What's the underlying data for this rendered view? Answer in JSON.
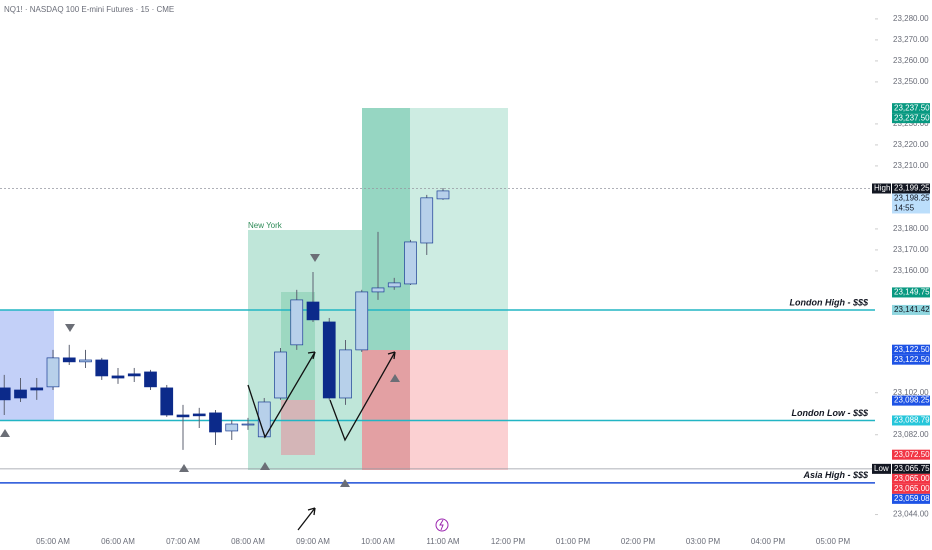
{
  "chart_data": {
    "type": "candlestick",
    "title": "NQ1! · NASDAQ 100 E-mini Futures · 15 · CME",
    "up_color": "#b7d0ea",
    "up_border": "#1c3f94",
    "down_color": "#0c2a8a",
    "open": [
      23104.3,
      23103.3,
      23104.3,
      23104.8,
      23118.6,
      23116.7,
      23117.6,
      23110.0,
      23111.0,
      23111.9,
      23104.3,
      23091.4,
      23091.9,
      23092.4,
      23083.8,
      23086.7,
      23081.0,
      23099.5,
      23124.8,
      23145.2,
      23135.7,
      23099.5,
      23122.4,
      23150.0,
      23152.4,
      23153.8,
      23173.3,
      23194.3
    ],
    "high": [
      23110.5,
      23109.0,
      23109.0,
      23122.4,
      23124.8,
      23122.4,
      23118.6,
      23113.8,
      23113.8,
      23112.9,
      23105.7,
      23096.2,
      23094.8,
      23093.8,
      23089.0,
      23090.0,
      23099.5,
      23123.3,
      23151.0,
      23159.5,
      23137.6,
      23127.1,
      23151.0,
      23178.6,
      23156.7,
      23174.8,
      23196.2,
      23199.5
    ],
    "low": [
      23091.4,
      23097.6,
      23098.6,
      23103.3,
      23115.2,
      23113.8,
      23108.1,
      23106.2,
      23107.1,
      23103.3,
      23090.5,
      23074.8,
      23085.2,
      23077.1,
      23079.5,
      23084.3,
      23080.5,
      23098.6,
      23122.4,
      23135.7,
      23098.6,
      23096.2,
      23121.4,
      23146.2,
      23151.0,
      23153.3,
      23167.6,
      23193.8
    ],
    "close": [
      23098.6,
      23099.5,
      23103.3,
      23118.6,
      23116.7,
      23117.6,
      23110.0,
      23109.0,
      23110.0,
      23104.8,
      23091.4,
      23090.5,
      23091.0,
      23083.3,
      23087.1,
      23087.1,
      23097.6,
      23121.4,
      23146.2,
      23136.7,
      23099.5,
      23122.4,
      23150.0,
      23151.9,
      23154.3,
      23173.8,
      23194.8,
      23198.1
    ],
    "time_labels": [
      "05:00 AM",
      "06:00 AM",
      "07:00 AM",
      "08:00 AM",
      "09:00 AM",
      "10:00 AM",
      "11:00 AM",
      "12:00 PM",
      "01:00 PM",
      "02:00 PM",
      "03:00 PM",
      "04:00 PM",
      "05:00 PM"
    ],
    "ylim": [
      23041.4,
      23289.0
    ],
    "yticks": [
      {
        "value": 23280,
        "label": "23,280.00"
      },
      {
        "value": 23270,
        "label": "23,270.00"
      },
      {
        "value": 23260,
        "label": "23,260.00"
      },
      {
        "value": 23250,
        "label": "23,250.00"
      },
      {
        "value": 23230,
        "label": "23,230.00"
      },
      {
        "value": 23220,
        "label": "23,220.00"
      },
      {
        "value": 23210,
        "label": "23,210.00"
      },
      {
        "value": 23180,
        "label": "23,180.00"
      },
      {
        "value": 23170,
        "label": "23,170.00"
      },
      {
        "value": 23160,
        "label": "23,160.00"
      },
      {
        "value": 23102,
        "label": "23,102.00"
      },
      {
        "value": 23082,
        "label": "23,082.00"
      },
      {
        "value": 23044,
        "label": "23,044.00"
      }
    ],
    "levels": [
      {
        "name": "London High - $$$",
        "value": 23141.42,
        "color": "#22b5c4"
      },
      {
        "name": "London Low - $$$",
        "value": 23088.79,
        "color": "#22b5c4"
      },
      {
        "name": "Asia High - $$$",
        "value": 23059.08,
        "color": "#1e4fd8"
      }
    ],
    "price_labels": [
      {
        "value": 23237.5,
        "label": "23,237.50",
        "color": "#089981"
      },
      {
        "value": 23237.5,
        "label": "23,237.50",
        "color": "#089981"
      },
      {
        "value": 23199.25,
        "label": "23,199.25",
        "color": "#131722",
        "tag": "High"
      },
      {
        "value": 23198.25,
        "label": "23,198.25",
        "color": "#bbdefb",
        "sub": "14:55"
      },
      {
        "value": 23149.75,
        "label": "23,149.75",
        "color": "#089981"
      },
      {
        "value": 23141.42,
        "label": "23,141.42",
        "color": "#8fd6df"
      },
      {
        "value": 23122.5,
        "label": "23,122.50",
        "color": "#1e53e5"
      },
      {
        "value": 23122.5,
        "label": "23,122.50",
        "color": "#1e53e5"
      },
      {
        "value": 23098.25,
        "label": "23,098.25",
        "color": "#1e53e5"
      },
      {
        "value": 23088.79,
        "label": "23,088.79",
        "color": "#26c6da"
      },
      {
        "value": 23072.5,
        "label": "23,072.50",
        "color": "#f23645"
      },
      {
        "value": 23065.75,
        "label": "23,065.75",
        "color": "#131722",
        "tag": "Low"
      },
      {
        "value": 23065.0,
        "label": "23,065.00",
        "color": "#f23645"
      },
      {
        "value": 23065.0,
        "label": "23,065.00",
        "color": "#f23645"
      },
      {
        "value": 23059.08,
        "label": "23,059.08",
        "color": "#1e53e5"
      }
    ],
    "session_label": "New York"
  }
}
